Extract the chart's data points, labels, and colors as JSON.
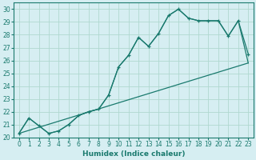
{
  "xlabel": "Humidex (Indice chaleur)",
  "xlim": [
    -0.5,
    23.5
  ],
  "ylim": [
    20,
    30.5
  ],
  "xticks": [
    0,
    1,
    2,
    3,
    4,
    5,
    6,
    7,
    8,
    9,
    10,
    11,
    12,
    13,
    14,
    15,
    16,
    17,
    18,
    19,
    20,
    21,
    22,
    23
  ],
  "yticks": [
    20,
    21,
    22,
    23,
    24,
    25,
    26,
    27,
    28,
    29,
    30
  ],
  "bg_color": "#d6eef2",
  "line_color": "#1a7a6e",
  "grid_color": "#b0d8d0",
  "line1_x": [
    0,
    1,
    2,
    3,
    4,
    5,
    6,
    7,
    8,
    9,
    10,
    11,
    12,
    13,
    14,
    15,
    16,
    17,
    18,
    19,
    20,
    21,
    22,
    23
  ],
  "line1_y": [
    20.3,
    21.5,
    20.9,
    20.3,
    20.5,
    21.0,
    21.7,
    22.0,
    22.2,
    23.3,
    25.5,
    26.4,
    27.8,
    27.1,
    28.1,
    29.5,
    30.0,
    29.3,
    29.1,
    29.1,
    29.1,
    27.9,
    29.1,
    26.5
  ],
  "line2_x": [
    0,
    1,
    2,
    3,
    4,
    5,
    6,
    7,
    8,
    9,
    10,
    11,
    12,
    13,
    14,
    15,
    16,
    17,
    18,
    19,
    20,
    21,
    22,
    23
  ],
  "line2_y": [
    20.3,
    21.5,
    20.9,
    20.3,
    20.5,
    21.0,
    21.7,
    22.0,
    22.2,
    23.3,
    25.5,
    26.4,
    27.8,
    27.1,
    28.1,
    29.5,
    30.0,
    29.3,
    29.1,
    29.1,
    29.1,
    27.9,
    29.1,
    25.8
  ],
  "line3_x": [
    0,
    23
  ],
  "line3_y": [
    20.3,
    25.8
  ],
  "xlabel_fontsize": 6.5,
  "tick_fontsize": 5.5
}
